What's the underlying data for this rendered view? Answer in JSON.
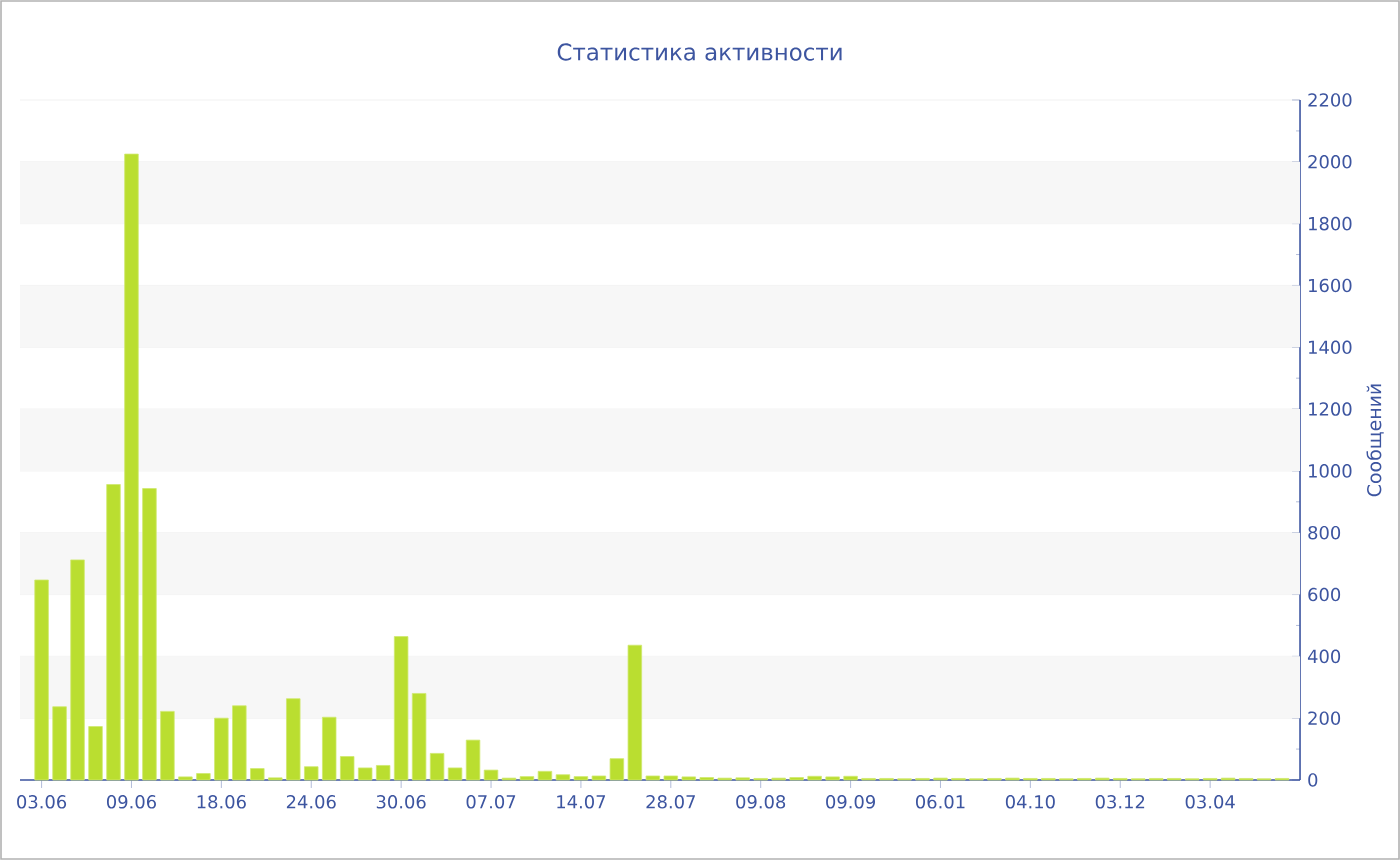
{
  "chart_data": {
    "type": "bar",
    "title": "Статистика активности",
    "ylabel": "Сообщений",
    "categories": [
      "03.06",
      null,
      null,
      null,
      null,
      "09.06",
      null,
      null,
      null,
      null,
      "18.06",
      null,
      null,
      null,
      null,
      "24.06",
      null,
      null,
      null,
      null,
      "30.06",
      null,
      null,
      null,
      null,
      "07.07",
      null,
      null,
      null,
      null,
      "14.07",
      null,
      null,
      null,
      null,
      "28.07",
      null,
      null,
      null,
      null,
      "09.08",
      null,
      null,
      null,
      null,
      "09.09",
      null,
      null,
      null,
      null,
      "06.01",
      null,
      null,
      null,
      null,
      "04.10",
      null,
      null,
      null,
      null,
      "03.12",
      null,
      null,
      null,
      null,
      "03.04",
      null,
      null,
      null,
      null
    ],
    "values": [
      647,
      237,
      712,
      173,
      956,
      2025,
      943,
      222,
      10,
      21,
      200,
      240,
      37,
      7,
      263,
      43,
      203,
      76,
      39,
      47,
      464,
      280,
      86,
      39,
      129,
      32,
      6,
      11,
      28,
      17,
      11,
      13,
      69,
      436,
      13,
      13,
      10,
      8,
      6,
      7,
      5,
      6,
      8,
      12,
      10,
      12,
      5,
      5,
      4,
      5,
      6,
      5,
      4,
      5,
      6,
      5,
      5,
      4,
      5,
      6,
      5,
      4,
      5,
      5,
      4,
      5,
      6,
      5,
      4,
      5
    ],
    "color": "#bade30",
    "ylim": [
      0,
      2200
    ],
    "yticks": [
      0,
      200,
      400,
      600,
      800,
      1000,
      1200,
      1400,
      1600,
      1800,
      2000,
      2200
    ],
    "grid": "y"
  }
}
